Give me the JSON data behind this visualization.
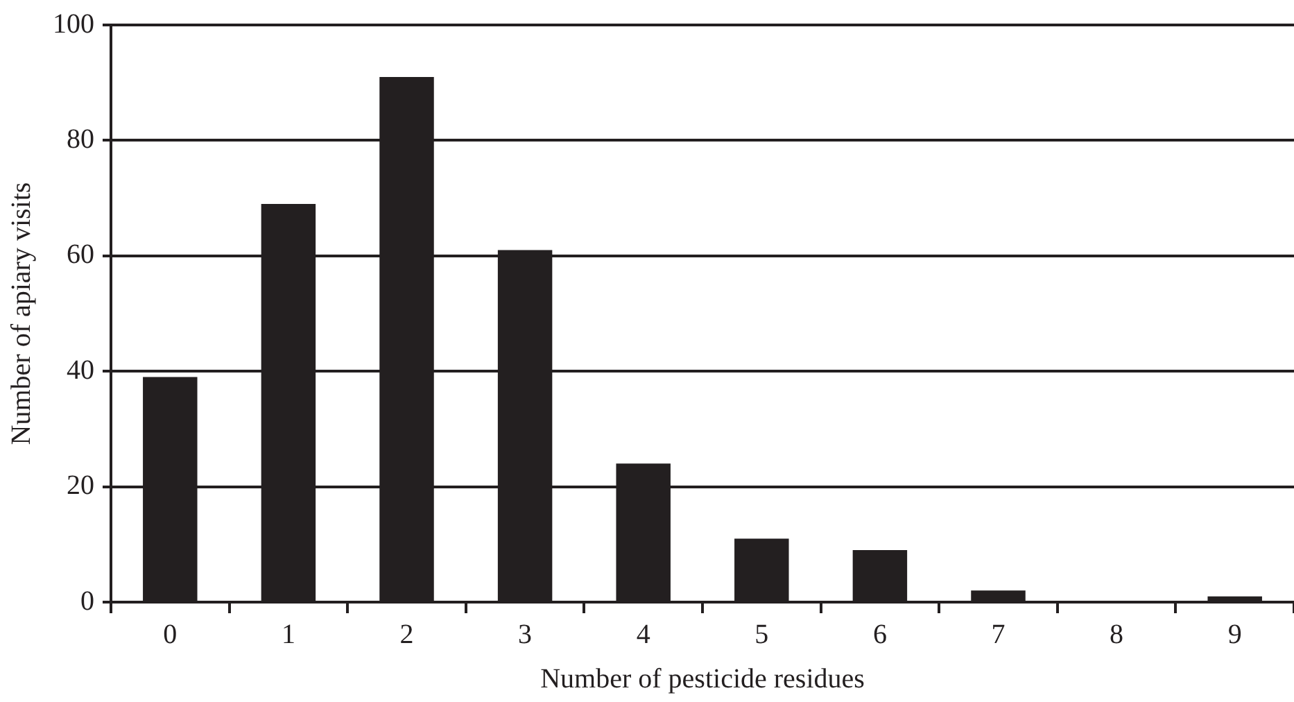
{
  "chart_data": {
    "type": "bar",
    "xlabel": "Number of pesticide residues",
    "ylabel": "Number of apiary visits",
    "categories": [
      "0",
      "1",
      "2",
      "3",
      "4",
      "5",
      "6",
      "7",
      "8",
      "9"
    ],
    "values": [
      39,
      69,
      91,
      61,
      24,
      11,
      9,
      2,
      0,
      1
    ],
    "color": "#231f20",
    "ylim": [
      0,
      100
    ],
    "yticks": [
      0,
      20,
      40,
      60,
      80,
      100
    ],
    "grid": "y",
    "legend": false
  }
}
